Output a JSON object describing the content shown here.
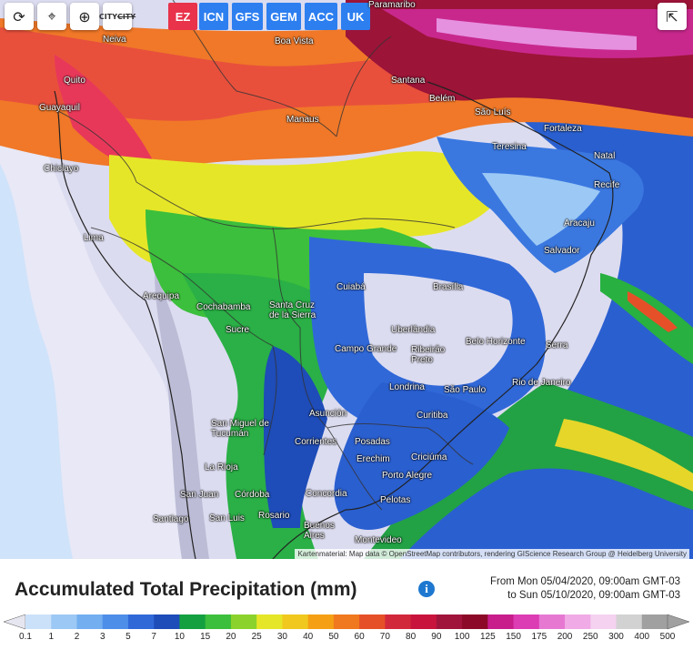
{
  "toolbar": {
    "refresh_icon": "refresh-icon",
    "location_icon": "location-pin-icon",
    "zoom_icon": "zoom-icon",
    "city_toggle_label": "CITY",
    "share_icon": "share-icon"
  },
  "models": [
    {
      "label": "EZ",
      "color": "#e8334a"
    },
    {
      "label": "ICN",
      "color": "#2d7ff0"
    },
    {
      "label": "GFS",
      "color": "#2d7ff0"
    },
    {
      "label": "GEM",
      "color": "#2d7ff0"
    },
    {
      "label": "ACC",
      "color": "#2d7ff0"
    },
    {
      "label": "UK",
      "color": "#2d7ff0"
    }
  ],
  "cities": [
    "Neiva",
    "Boa Vista",
    "Paramaribo",
    "Quito",
    "Santana",
    "Guayaquil",
    "Belém",
    "São Luís",
    "Manaus",
    "Fortaleza",
    "Teresina",
    "Chiclayo",
    "Natal",
    "Recife",
    "Aracaju",
    "Lima",
    "Salvador",
    "Cuiabá",
    "Brasília",
    "Arequipa",
    "Cochabamba",
    "Santa Cruz de la Sierra",
    "Sucre",
    "Uberlândia",
    "Belo Horizonte",
    "Serra",
    "Campo Grande",
    "Ribeirão Preto",
    "Londrina",
    "São Paulo",
    "Rio de Janeiro",
    "Asunción",
    "San Miguel de Tucumán",
    "Curitiba",
    "Corrientes",
    "Posadas",
    "Erechim",
    "Criciúma",
    "La Rioja",
    "Porto Alegre",
    "San Juan",
    "Córdoba",
    "Concordia",
    "Pelotas",
    "Santiago",
    "San Luis",
    "Rosario",
    "Buenos Aires",
    "Montevideo"
  ],
  "attribution": "Kartenmaterial: Map data © OpenStreetMap contributors, rendering GIScience Research Group @ Heidelberg University",
  "footer": {
    "title": "Accumulated Total Precipitation (mm)",
    "date_from": "From Mon 05/04/2020, 09:00am GMT-03",
    "date_to": "to Sun 05/10/2020, 09:00am GMT-03"
  },
  "legend": {
    "values": [
      "0.1",
      "1",
      "2",
      "3",
      "5",
      "7",
      "10",
      "15",
      "20",
      "25",
      "30",
      "40",
      "50",
      "60",
      "70",
      "80",
      "90",
      "100",
      "125",
      "150",
      "175",
      "200",
      "250",
      "300",
      "400",
      "500"
    ],
    "colors": [
      "#e6e6f0",
      "#cbe1fa",
      "#9cc8f5",
      "#72aef0",
      "#4d8ee8",
      "#3068d8",
      "#1e4cb8",
      "#14a041",
      "#3cbf3c",
      "#8cd22c",
      "#e6e628",
      "#f0c81e",
      "#f5a014",
      "#f0781e",
      "#e65028",
      "#d2283c",
      "#c8143c",
      "#a0143c",
      "#8c0a28",
      "#c81e8c",
      "#dc3cb4",
      "#e678d2",
      "#f0aae6",
      "#f5d2f0",
      "#d2d2d2",
      "#a0a0a0"
    ]
  }
}
